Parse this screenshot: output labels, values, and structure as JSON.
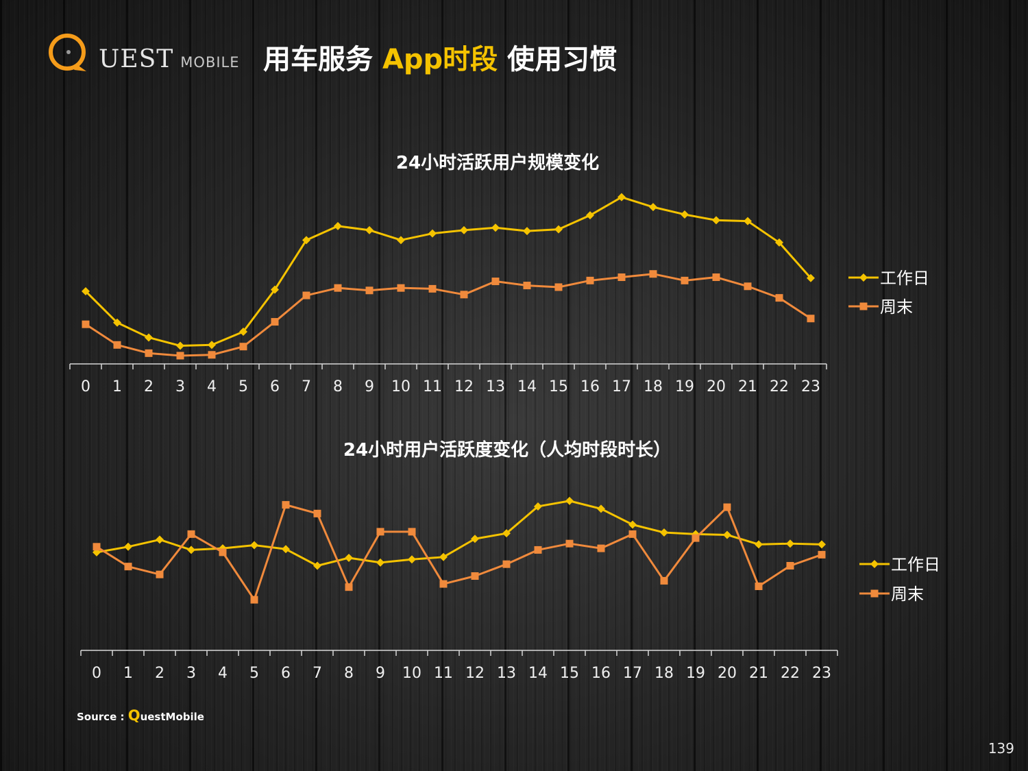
{
  "logo": {
    "text_main": "UEST",
    "text_sub": "MOBILE"
  },
  "title": {
    "part1": "用车服务 ",
    "accent": "App时段",
    "part2": " 使用习惯"
  },
  "colors": {
    "series1": "#f5c300",
    "series2": "#f08a3c",
    "axis": "#d8d8d8",
    "text": "#ffffff"
  },
  "chart_data": [
    {
      "type": "line",
      "title": "24小时活跃用户规模变化",
      "categories": [
        "0",
        "1",
        "2",
        "3",
        "4",
        "5",
        "6",
        "7",
        "8",
        "9",
        "10",
        "11",
        "12",
        "13",
        "14",
        "15",
        "16",
        "17",
        "18",
        "19",
        "20",
        "21",
        "22",
        "23"
      ],
      "series": [
        {
          "name": "工作日",
          "marker": "diamond",
          "values": [
            44,
            25,
            16,
            11,
            11.5,
            19.5,
            45,
            75,
            83.5,
            81,
            75,
            79,
            81,
            82.5,
            80.5,
            81.5,
            90,
            101,
            95,
            90.5,
            87,
            86.5,
            73.5,
            52
          ]
        },
        {
          "name": "周末",
          "marker": "square",
          "values": [
            24,
            11.5,
            6.5,
            5,
            5.5,
            10.5,
            25.5,
            41.5,
            46,
            44.5,
            46,
            45.5,
            42,
            50,
            47.5,
            46.5,
            50.5,
            52.5,
            54.5,
            50.5,
            52.5,
            47,
            40,
            27.5
          ]
        }
      ],
      "ylim": [
        0,
        110
      ],
      "legend": "right",
      "grid": false
    },
    {
      "type": "line",
      "title": "24小时用户活跃度变化（人均时段时长）",
      "categories": [
        "0",
        "1",
        "2",
        "3",
        "4",
        "5",
        "6",
        "7",
        "8",
        "9",
        "10",
        "11",
        "12",
        "13",
        "14",
        "15",
        "16",
        "17",
        "18",
        "19",
        "20",
        "21",
        "22",
        "23"
      ],
      "series": [
        {
          "name": "工作日",
          "marker": "diamond",
          "values": [
            62,
            65.5,
            70,
            63.5,
            64.5,
            66.5,
            64,
            53.5,
            58.5,
            55.5,
            57.5,
            59,
            70.5,
            74,
            91,
            94.5,
            89.5,
            79.5,
            74.5,
            73.5,
            73,
            67,
            67.5,
            67
          ]
        },
        {
          "name": "周末",
          "marker": "square",
          "values": [
            65.5,
            53,
            48,
            73.5,
            62,
            32,
            92,
            86.5,
            40,
            75,
            75,
            42,
            47,
            54.5,
            63.5,
            67.5,
            64.5,
            73.5,
            44,
            71,
            90.5,
            40.5,
            53.5,
            60.5
          ]
        }
      ],
      "ylim": [
        0,
        120
      ],
      "legend": "right",
      "grid": false
    }
  ],
  "source": {
    "label": "Source : ",
    "q": "Q",
    "rest": "uestMobile"
  },
  "page_number": "139"
}
